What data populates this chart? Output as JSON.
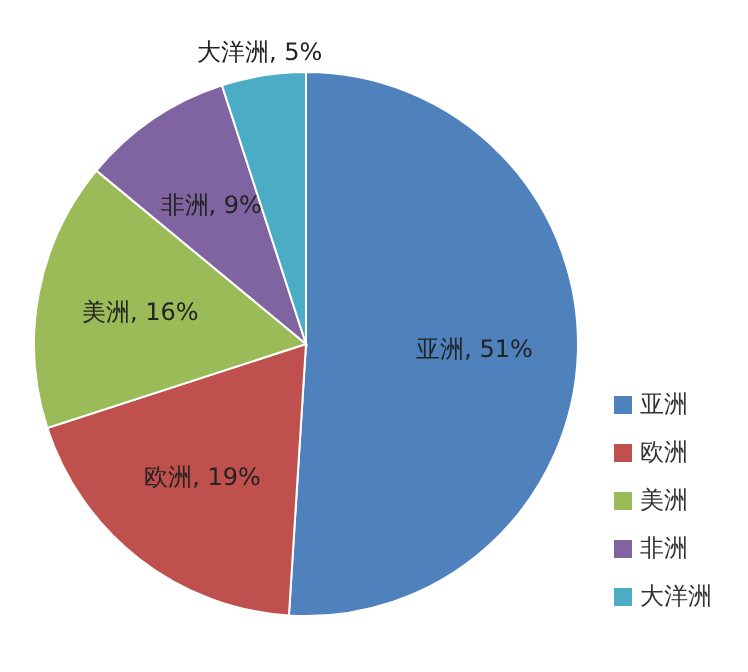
{
  "chart_data": {
    "type": "pie",
    "categories": [
      "亚洲",
      "欧洲",
      "美洲",
      "非洲",
      "大洋洲"
    ],
    "values": [
      51,
      19,
      16,
      9,
      5
    ],
    "colors": [
      "#4f81bd",
      "#c0504d",
      "#9bbb59",
      "#8064a2",
      "#4bacc6"
    ],
    "value_labels": [
      "亚洲, 51%",
      "欧洲, 19%",
      "美洲, 16%",
      "非洲, 9%",
      "大洋洲, 5%"
    ],
    "legend": "right"
  }
}
